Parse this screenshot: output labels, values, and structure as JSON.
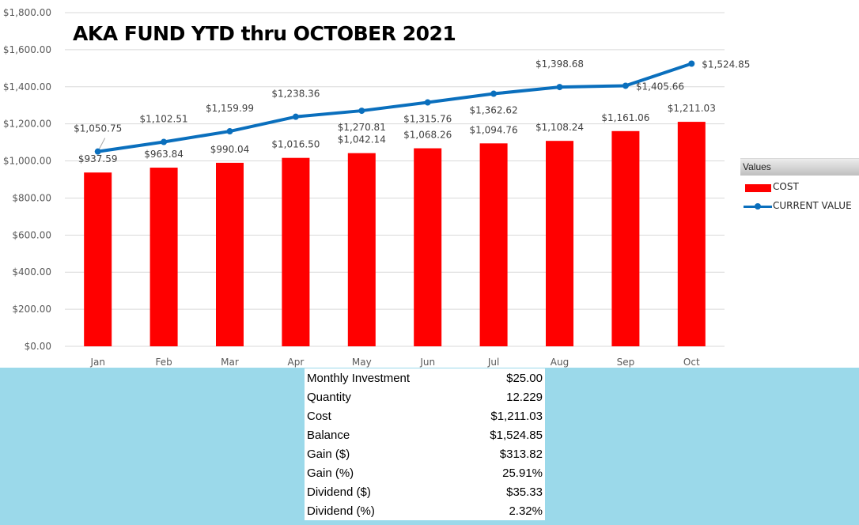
{
  "chart_data": {
    "type": "bar+line",
    "title": "AKA FUND YTD thru OCTOBER 2021",
    "categories": [
      "Jan",
      "Feb",
      "Mar",
      "Apr",
      "May",
      "Jun",
      "Jul",
      "Aug",
      "Sep",
      "Oct"
    ],
    "series": [
      {
        "name": "COST",
        "type": "bar",
        "color": "#ff0000",
        "values": [
          937.59,
          963.84,
          990.04,
          1016.5,
          1042.14,
          1068.26,
          1094.76,
          1108.24,
          1161.06,
          1211.03
        ],
        "labels": [
          "$937.59",
          "$963.84",
          "$990.04",
          "$1,016.50",
          "$1,042.14",
          "$1,068.26",
          "$1,094.76",
          "$1,108.24",
          "$1,161.06",
          "$1,211.03"
        ]
      },
      {
        "name": "CURRENT VALUE",
        "type": "line",
        "color": "#0a6fbd",
        "values": [
          1050.75,
          1102.51,
          1159.99,
          1238.36,
          1270.81,
          1315.76,
          1362.62,
          1398.68,
          1405.66,
          1524.85
        ],
        "labels": [
          "$1,050.75",
          "$1,102.51",
          "$1,159.99",
          "$1,238.36",
          "$1,270.81",
          "$1,315.76",
          "$1,362.62",
          "$1,398.68",
          "$1,405.66",
          "$1,524.85"
        ]
      }
    ],
    "ylim": [
      0,
      1800
    ],
    "yticks": [
      0,
      200,
      400,
      600,
      800,
      1000,
      1200,
      1400,
      1600,
      1800
    ],
    "ytick_labels": [
      "$0.00",
      "$200.00",
      "$400.00",
      "$600.00",
      "$800.00",
      "$1,000.00",
      "$1,200.00",
      "$1,400.00",
      "$1,600.00",
      "$1,800.00"
    ],
    "grid": true,
    "legend_title": "Values",
    "legend_position": "right"
  },
  "summary": [
    {
      "label": "Monthly Investment",
      "value": "$25.00"
    },
    {
      "label": "Quantity",
      "value": "12.229"
    },
    {
      "label": "Cost",
      "value": "$1,211.03"
    },
    {
      "label": "Balance",
      "value": "$1,524.85"
    },
    {
      "label": "Gain ($)",
      "value": "$313.82"
    },
    {
      "label": "Gain (%)",
      "value": "25.91%"
    },
    {
      "label": "Dividend ($)",
      "value": "$35.33"
    },
    {
      "label": "Dividend (%)",
      "value": "2.32%"
    }
  ]
}
